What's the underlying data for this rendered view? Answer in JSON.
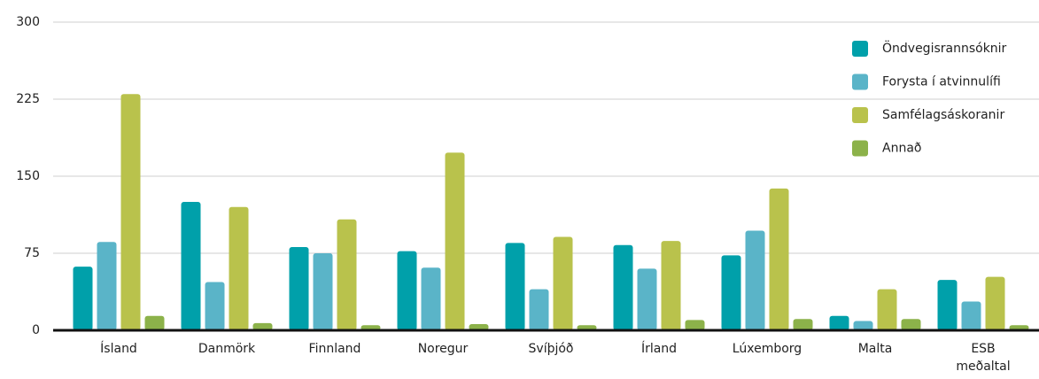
{
  "chart_data": {
    "type": "bar",
    "categories": [
      "Ísland",
      "Danmörk",
      "Finnland",
      "Noregur",
      "Svíþjóð",
      "Írland",
      "Lúxemborg",
      "Malta",
      "ESB meðaltal"
    ],
    "series": [
      {
        "name": "Öndvegisrannsóknir",
        "color": "#00a0aa",
        "values": [
          62,
          125,
          81,
          77,
          85,
          83,
          73,
          14,
          49
        ]
      },
      {
        "name": "Forysta í atvinnulífi",
        "color": "#5ab4c8",
        "values": [
          86,
          47,
          75,
          61,
          40,
          60,
          97,
          9,
          28
        ]
      },
      {
        "name": "Samfélagsáskoranir",
        "color": "#b9c24c",
        "values": [
          230,
          120,
          108,
          173,
          91,
          87,
          138,
          40,
          52
        ]
      },
      {
        "name": "Annað",
        "color": "#8cb24a",
        "values": [
          14,
          7,
          5,
          6,
          5,
          10,
          11,
          11,
          5
        ]
      }
    ],
    "ylim": [
      0,
      300
    ],
    "yticks": [
      0,
      75,
      150,
      225,
      300
    ],
    "grid": true,
    "legend": "top-right"
  }
}
